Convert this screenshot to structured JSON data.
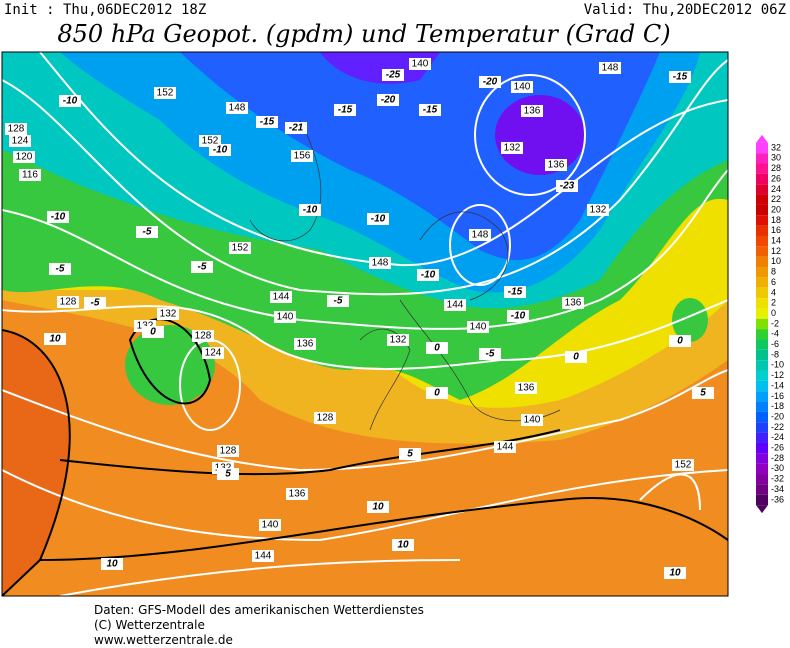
{
  "header": {
    "init": "Init : Thu,06DEC2012 18Z",
    "valid": "Valid: Thu,20DEC2012 06Z",
    "title": "850 hPa Geopot. (gpdm) und Temperatur (Grad C)"
  },
  "legend": {
    "levels": [
      32,
      30,
      28,
      26,
      24,
      22,
      20,
      18,
      16,
      14,
      12,
      10,
      8,
      6,
      4,
      2,
      0,
      -2,
      -4,
      -6,
      -8,
      -10,
      -12,
      -14,
      -16,
      -18,
      -20,
      -22,
      -24,
      -26,
      -28,
      -30,
      -32,
      -34,
      -36
    ],
    "colors": [
      "#ff40ff",
      "#ff20c0",
      "#ff1090",
      "#f00060",
      "#e00030",
      "#d00000",
      "#c80000",
      "#e01000",
      "#e83000",
      "#f04800",
      "#f06000",
      "#f08000",
      "#f09800",
      "#f0b000",
      "#f0c800",
      "#f0e000",
      "#e8f000",
      "#80e000",
      "#30d030",
      "#10c860",
      "#00c090",
      "#00c8b0",
      "#00d0d0",
      "#00c0f0",
      "#00a0ff",
      "#0080ff",
      "#0060ff",
      "#2040ff",
      "#4020ff",
      "#6000ff",
      "#8000e0",
      "#9000c0",
      "#8000a0",
      "#700080",
      "#500060"
    ]
  },
  "map": {
    "geopotential_labels": [
      152,
      148,
      152,
      156,
      152,
      148,
      144,
      140,
      136,
      132,
      128,
      132,
      132,
      128,
      124,
      128,
      128,
      132,
      136,
      140,
      144,
      144,
      140,
      136,
      140,
      144,
      148,
      136,
      132,
      136,
      132,
      136,
      140,
      140,
      148,
      128,
      124,
      120,
      116,
      152
    ],
    "temperature_labels": [
      -10,
      -10,
      -15,
      -21,
      -15,
      -20,
      -25,
      -15,
      -20,
      -15,
      -23,
      -10,
      -10,
      -10,
      -5,
      -5,
      -5,
      -5,
      -10,
      -15,
      -10,
      -5,
      0,
      0,
      0,
      0,
      -5,
      0,
      10,
      5,
      10,
      10,
      10,
      10,
      5,
      5
    ]
  },
  "footer": {
    "lines": [
      "Daten: GFS-Modell des amerikanischen Wetterdienstes",
      "(C) Wetterzentrale",
      "www.wetterzentrale.de"
    ]
  }
}
